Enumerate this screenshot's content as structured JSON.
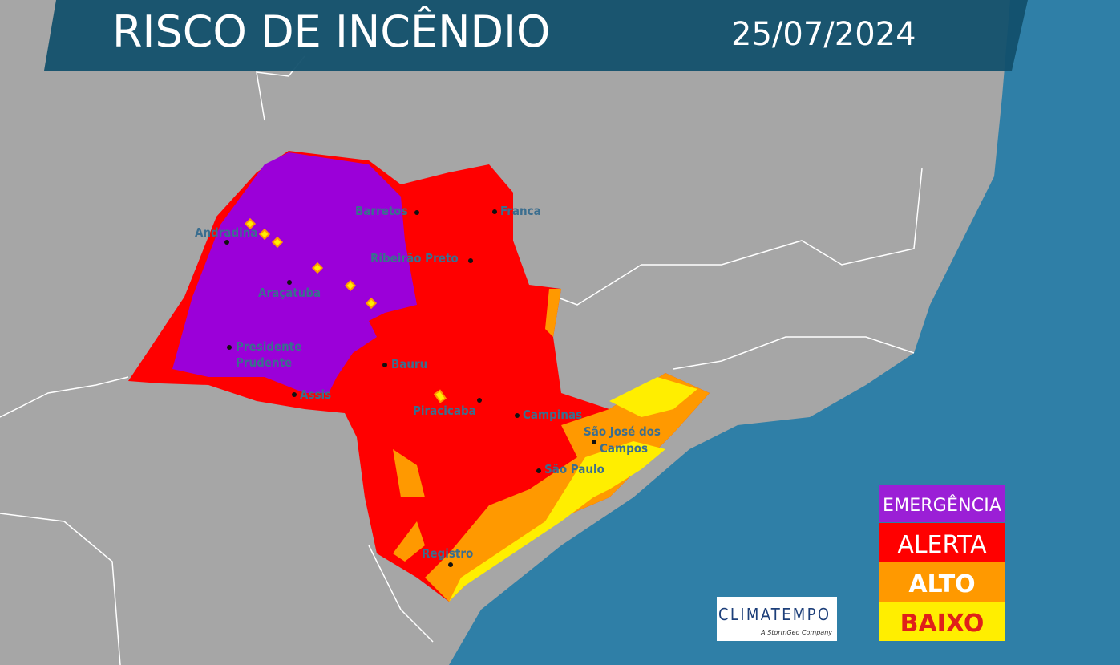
{
  "header": {
    "title": "RISCO DE INCÊNDIO",
    "date": "25/07/2024"
  },
  "cities": [
    {
      "lines": [
        "Barretos"
      ]
    },
    {
      "lines": [
        "Franca"
      ]
    },
    {
      "lines": [
        "Andradina"
      ]
    },
    {
      "lines": [
        "Ribeirão Preto"
      ]
    },
    {
      "lines": [
        "Araçatuba"
      ]
    },
    {
      "lines": [
        "Presidente",
        "Prudente"
      ]
    },
    {
      "lines": [
        "Bauru"
      ]
    },
    {
      "lines": [
        "Assis"
      ]
    },
    {
      "lines": [
        "Piracicaba"
      ]
    },
    {
      "lines": [
        "Campinas"
      ]
    },
    {
      "lines": [
        "São José dos",
        "Campos"
      ]
    },
    {
      "lines": [
        "São Paulo"
      ]
    },
    {
      "lines": [
        "Registro"
      ]
    }
  ],
  "legend": [
    {
      "label": "EMERGÊNCIA"
    },
    {
      "label": "ALERTA"
    },
    {
      "label": "ALTO"
    },
    {
      "label": "BAIXO"
    }
  ],
  "logo": {
    "name": "CLIMATEMPO",
    "tagline": "A StormGeo Company"
  }
}
